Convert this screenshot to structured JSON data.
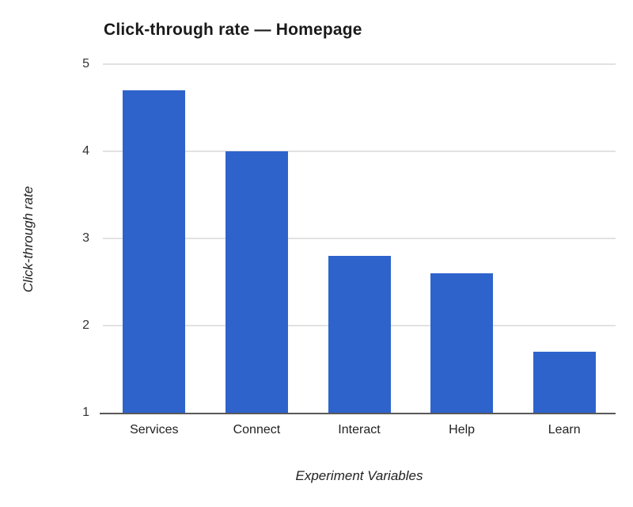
{
  "chart_data": {
    "type": "bar",
    "title": "Click-through rate — Homepage",
    "xlabel": "Experiment Variables",
    "ylabel": "Click-through rate",
    "categories": [
      "Services",
      "Connect",
      "Interact",
      "Help",
      "Learn"
    ],
    "values": [
      4.7,
      4.0,
      2.8,
      2.6,
      1.7
    ],
    "ylim": [
      1,
      5
    ],
    "yticks": [
      1,
      2,
      3,
      4,
      5
    ],
    "legend": "none",
    "grid": "horizontal",
    "colors": {
      "bar": "#2E63CC",
      "gridline": "#e2e2e2",
      "axis_line": "#595959",
      "title_text": "#1a1a1a",
      "tick_text": "#333333",
      "label_text": "#222222",
      "background": "#ffffff"
    }
  }
}
